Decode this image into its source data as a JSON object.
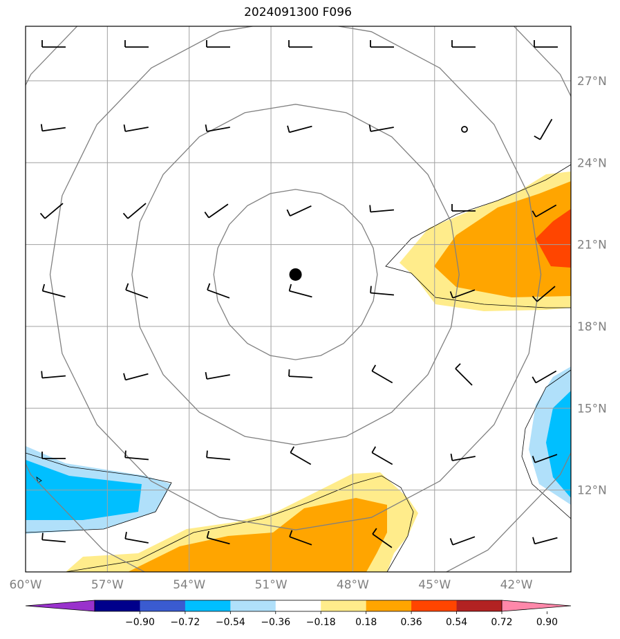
{
  "title": "2024091300 F096",
  "map": {
    "lon_range": [
      -60,
      -40
    ],
    "lat_range": [
      9,
      29
    ],
    "x_ticks": [
      {
        "lon": -60,
        "label": "60°W"
      },
      {
        "lon": -57,
        "label": "57°W"
      },
      {
        "lon": -54,
        "label": "54°W"
      },
      {
        "lon": -51,
        "label": "51°W"
      },
      {
        "lon": -48,
        "label": "48°W"
      },
      {
        "lon": -45,
        "label": "45°W"
      },
      {
        "lon": -42,
        "label": "42°W"
      }
    ],
    "y_ticks": [
      {
        "lat": 27,
        "label": "27°N"
      },
      {
        "lat": 24,
        "label": "24°N"
      },
      {
        "lat": 21,
        "label": "21°N"
      },
      {
        "lat": 18,
        "label": "18°N"
      },
      {
        "lat": 15,
        "label": "15°N"
      },
      {
        "lat": 12,
        "label": "12°N"
      }
    ],
    "storm_center": {
      "lon": -50.1,
      "lat": 19.9
    },
    "range_rings_deg": [
      3,
      6,
      9,
      12
    ],
    "colors": {
      "grid": "#a0a0a0",
      "ring": "#808080",
      "frame": "#000000"
    }
  },
  "colorbar": {
    "levels": [
      "−0.90",
      "−0.72",
      "−0.54",
      "−0.36",
      "−0.18",
      "0.18",
      "0.36",
      "0.54",
      "0.72",
      "0.90"
    ],
    "colors": [
      "#9932cc",
      "#00008b",
      "#3a5bd0",
      "#00bfff",
      "#b0e0fa",
      "#ffffff",
      "#ffec8b",
      "#ffa500",
      "#ff4500",
      "#b22222",
      "#ff88aa"
    ]
  }
}
